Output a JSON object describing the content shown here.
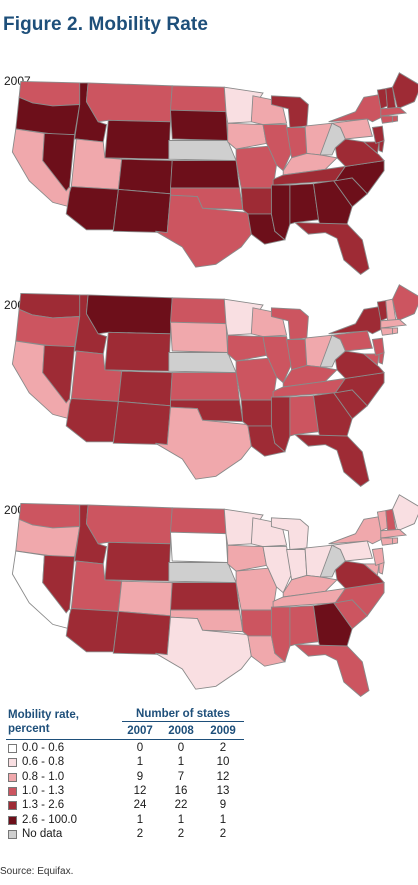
{
  "figure_title": "Figure 2. Mobility Rate",
  "legend": {
    "title": "Mobility rate, percent",
    "count_header": "Number of states",
    "years": [
      "2007",
      "2008",
      "2009"
    ],
    "bins": [
      {
        "range": "0.0 - 0.6",
        "color": "#ffffff",
        "counts": [
          "0",
          "0",
          "2"
        ]
      },
      {
        "range": "0.6 - 0.8",
        "color": "#f9dfe2",
        "counts": [
          "1",
          "1",
          "10"
        ]
      },
      {
        "range": "0.8 - 1.0",
        "color": "#f0a8ac",
        "counts": [
          "9",
          "7",
          "12"
        ]
      },
      {
        "range": "1.0 - 1.3",
        "color": "#cc5560",
        "counts": [
          "12",
          "16",
          "13"
        ]
      },
      {
        "range": "1.3 - 2.6",
        "color": "#9e2b35",
        "counts": [
          "24",
          "22",
          "9"
        ]
      },
      {
        "range": "2.6 - 100.0",
        "color": "#6d0f1a",
        "counts": [
          "1",
          "1",
          "1"
        ]
      },
      {
        "range": "No data",
        "color": "#cfcfcf",
        "counts": [
          "2",
          "2",
          "2"
        ]
      }
    ]
  },
  "maps": [
    {
      "year": "2007",
      "states": {
        "WA": 3,
        "OR": 5,
        "CA": 2,
        "NV": 5,
        "ID": 5,
        "MT": 3,
        "WY": 5,
        "UT": 2,
        "AZ": 5,
        "CO": 5,
        "NM": 5,
        "ND": 3,
        "SD": 5,
        "NE": 6,
        "KS": 5,
        "OK": 3,
        "TX": 3,
        "MN": 1,
        "IA": 2,
        "MO": 3,
        "AR": 4,
        "LA": 5,
        "WI": 2,
        "IL": 3,
        "MI": 4,
        "IN": 3,
        "OH": 2,
        "KY": 2,
        "TN": 4,
        "MS": 5,
        "AL": 5,
        "GA": 5,
        "FL": 4,
        "SC": 5,
        "NC": 5,
        "VA": 4,
        "WV": 6,
        "PA": 2,
        "NY": 3,
        "MD": 4,
        "DE": 4,
        "NJ": 4,
        "VT": 4,
        "NH": 4,
        "ME": 4,
        "MA": 3,
        "CT": 3,
        "RI": 3
      }
    },
    {
      "year": "2008",
      "states": {
        "WA": 4,
        "OR": 3,
        "CA": 2,
        "NV": 4,
        "ID": 4,
        "MT": 5,
        "WY": 4,
        "UT": 3,
        "AZ": 4,
        "CO": 4,
        "NM": 4,
        "ND": 3,
        "SD": 2,
        "NE": 6,
        "KS": 3,
        "OK": 4,
        "TX": 2,
        "MN": 1,
        "IA": 3,
        "MO": 3,
        "AR": 4,
        "LA": 4,
        "WI": 2,
        "IL": 3,
        "MI": 3,
        "IN": 3,
        "OH": 2,
        "KY": 3,
        "TN": 3,
        "MS": 4,
        "AL": 3,
        "GA": 4,
        "FL": 4,
        "SC": 4,
        "NC": 4,
        "VA": 4,
        "WV": 6,
        "PA": 3,
        "NY": 4,
        "MD": 3,
        "DE": 3,
        "NJ": 3,
        "VT": 4,
        "NH": 2,
        "ME": 3,
        "MA": 2,
        "CT": 2,
        "RI": 2
      }
    },
    {
      "year": "2009",
      "states": {
        "WA": 3,
        "OR": 2,
        "CA": 0,
        "NV": 4,
        "ID": 4,
        "MT": 3,
        "WY": 4,
        "UT": 3,
        "AZ": 4,
        "CO": 2,
        "NM": 4,
        "ND": 3,
        "SD": 0,
        "NE": 6,
        "KS": 4,
        "OK": 2,
        "TX": 1,
        "MN": 1,
        "IA": 2,
        "MO": 2,
        "AR": 3,
        "LA": 2,
        "WI": 1,
        "IL": 1,
        "MI": 1,
        "IN": 1,
        "OH": 1,
        "KY": 2,
        "TN": 2,
        "MS": 3,
        "AL": 3,
        "GA": 5,
        "FL": 3,
        "SC": 3,
        "NC": 3,
        "VA": 4,
        "WV": 6,
        "PA": 1,
        "NY": 2,
        "MD": 2,
        "DE": 2,
        "NJ": 2,
        "VT": 2,
        "NH": 3,
        "ME": 1,
        "MA": 2,
        "CT": 2,
        "RI": 2
      }
    }
  ],
  "source": "Source: Equifax."
}
